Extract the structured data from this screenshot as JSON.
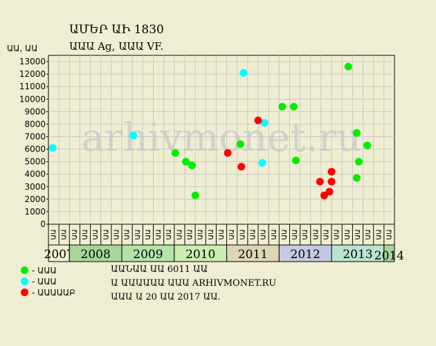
{
  "chart_data": {
    "type": "scatter",
    "title": "ԱՄԵՐ ԱԻ 1830",
    "subtitle": "ԱԱԱ Ag, ԱԱԱ VF.",
    "ylabel": "ԱԱ, ԱԱ",
    "ylim": [
      0,
      13500
    ],
    "yticks": [
      0,
      1000,
      2000,
      3000,
      4000,
      5000,
      6000,
      7000,
      8000,
      9000,
      10000,
      11000,
      12000,
      13000
    ],
    "grid": true,
    "watermark": "arhivmonet.ru",
    "years": [
      {
        "label": "2007",
        "color": "#f0eed2",
        "months": [
          "ԱԱ",
          "ԱԱ"
        ]
      },
      {
        "label": "2008",
        "color": "#a7d79a",
        "months": [
          "ԱԱ",
          "ԱԱ",
          "ԱԱ",
          "ԱԱ",
          "ԱԱ"
        ]
      },
      {
        "label": "2009",
        "color": "#b4e3a6",
        "months": [
          "ԱԱ",
          "ԱԱ",
          "ԱԱ",
          "ԱԱ",
          "ԱԱ"
        ]
      },
      {
        "label": "2010",
        "color": "#c9eeb0",
        "months": [
          "ԱԱ",
          "ԱԱ",
          "ԱԱ",
          "ԱԱ",
          "ԱԱ"
        ]
      },
      {
        "label": "2011",
        "color": "#ddd6b4",
        "months": [
          "ԱԱ",
          "ԱԱ",
          "ԱԱ",
          "ԱԱ",
          "ԱԱ"
        ]
      },
      {
        "label": "2012",
        "color": "#c5c9e4",
        "months": [
          "ԱԱ",
          "ԱԱ",
          "ԱԱ",
          "ԱԱ",
          "ԱԱ"
        ]
      },
      {
        "label": "2013",
        "color": "#b9e4d0",
        "months": [
          "ԱԱ",
          "ԱԱ",
          "ԱԱ",
          "ԱԱ",
          "ԱԱ"
        ]
      },
      {
        "label": "2014",
        "color": "#a7d79a",
        "months": [
          "ԱԱ"
        ]
      }
    ],
    "series": [
      {
        "name": "ԱԱԱ",
        "color": "#00ee00",
        "points": [
          {
            "x": 12.1,
            "y": 5700
          },
          {
            "x": 13.1,
            "y": 5000
          },
          {
            "x": 13.7,
            "y": 4700
          },
          {
            "x": 14.0,
            "y": 2300
          },
          {
            "x": 18.3,
            "y": 6400
          },
          {
            "x": 22.3,
            "y": 9400
          },
          {
            "x": 23.4,
            "y": 9400
          },
          {
            "x": 23.6,
            "y": 5100
          },
          {
            "x": 28.6,
            "y": 12600
          },
          {
            "x": 29.4,
            "y": 7300
          },
          {
            "x": 29.4,
            "y": 3700
          },
          {
            "x": 29.6,
            "y": 5000
          },
          {
            "x": 30.4,
            "y": 6300
          }
        ]
      },
      {
        "name": "ԱԱԱ",
        "color": "#00ffff",
        "points": [
          {
            "x": 0.4,
            "y": 6100
          },
          {
            "x": 8.1,
            "y": 7100
          },
          {
            "x": 18.6,
            "y": 12100
          },
          {
            "x": 20.6,
            "y": 8100
          },
          {
            "x": 20.4,
            "y": 4900
          }
        ]
      },
      {
        "name": "ԱԱԱԱԱԲ",
        "color": "#ff0000",
        "points": [
          {
            "x": 17.1,
            "y": 5700
          },
          {
            "x": 18.4,
            "y": 4600
          },
          {
            "x": 20.0,
            "y": 8300
          },
          {
            "x": 25.9,
            "y": 3400
          },
          {
            "x": 26.3,
            "y": 2300
          },
          {
            "x": 26.8,
            "y": 2600
          },
          {
            "x": 27.0,
            "y": 3400
          },
          {
            "x": 27.0,
            "y": 4200
          }
        ]
      }
    ]
  },
  "info": {
    "line1": "ԱԱՆԱԱ ԱԱ 6011 ԱԱ",
    "line2": "Ա ԱԱԱԱԱԱ ԱԱԱ ARHIVMONET.RU",
    "line3": "ԱԱԱ Ա 20 ԱԱ 2017 ԱԱ."
  }
}
